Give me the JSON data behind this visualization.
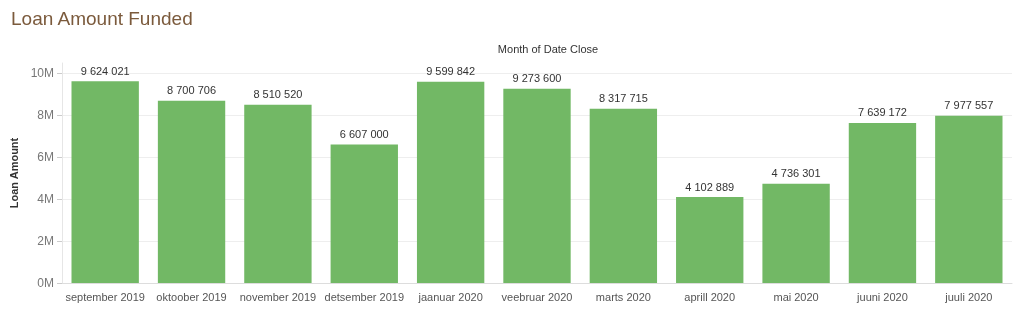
{
  "chart_data": {
    "type": "bar",
    "title": "Loan Amount Funded",
    "xlabel": "Month of Date Close",
    "ylabel": "Loan Amount",
    "categories": [
      "september 2019",
      "oktoober 2019",
      "november 2019",
      "detsember 2019",
      "jaanuar 2020",
      "veebruar 2020",
      "marts 2020",
      "aprill 2020",
      "mai 2020",
      "juuni 2020",
      "juuli 2020"
    ],
    "values": [
      9624021,
      8700706,
      8510520,
      6607000,
      9599842,
      9273600,
      8317715,
      4102889,
      4736301,
      7639172,
      7977557
    ],
    "value_labels": [
      "9 624 021",
      "8 700 706",
      "8 510 520",
      "6 607 000",
      "9 599 842",
      "9 273 600",
      "8 317 715",
      "4 102 889",
      "4 736 301",
      "7 639 172",
      "7 977 557"
    ],
    "color": "#72b865",
    "ylim": [
      0,
      10500000
    ],
    "yticks": [
      {
        "value": 0,
        "label": "0M"
      },
      {
        "value": 2000000,
        "label": "2M"
      },
      {
        "value": 4000000,
        "label": "4M"
      },
      {
        "value": 6000000,
        "label": "6M"
      },
      {
        "value": 8000000,
        "label": "8M"
      },
      {
        "value": 10000000,
        "label": "10M"
      }
    ],
    "grid": "y"
  }
}
